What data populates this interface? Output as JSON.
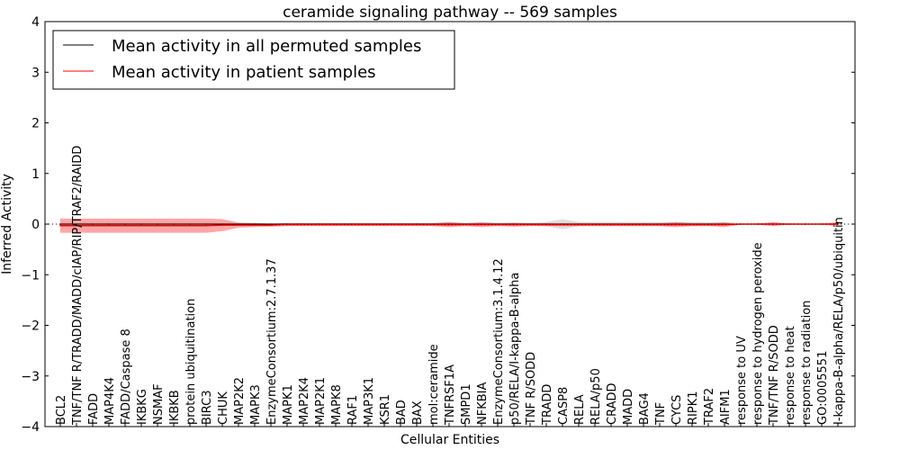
{
  "chart_data": {
    "type": "line",
    "title": "ceramide signaling pathway -- 569 samples",
    "xlabel": "Cellular Entities",
    "ylabel": "Inferred Activity",
    "ylim": [
      -4,
      4
    ],
    "yticks": [
      "4",
      "3",
      "2",
      "1",
      "0",
      "−1",
      "−2",
      "−3",
      "−4"
    ],
    "ytick_values": [
      4,
      3,
      2,
      1,
      0,
      -1,
      -2,
      -3,
      -4
    ],
    "legend_placement": "top-left",
    "categories": [
      "BCL2",
      "TNF/TNF R/TRADD/MADD/cIAP/RIP/TRAF2/RAIDD",
      "FADD",
      "MAP4K4",
      "FADD/Caspase 8",
      "IKBKG",
      "NSMAF",
      "IKBKB",
      "protein ubiquitination",
      "BIRC3",
      "CHUK",
      "MAP2K2",
      "MAPK3",
      "EnzymeConsortium:2.7.1.37",
      "MAPK1",
      "MAP2K4",
      "MAP2K1",
      "MAPK8",
      "RAF1",
      "MAP3K1",
      "KSR1",
      "BAD",
      "BAX",
      "mol:ceramide",
      "TNFRSF1A",
      "SMPD1",
      "NFKBIA",
      "EnzymeConsortium:3.1.4.12",
      "p50/RELA/I-kappa-B-alpha",
      "TNF R/SODD",
      "TRADD",
      "CASP8",
      "RELA",
      "RELA/p50",
      "CRADD",
      "MADD",
      "BAG4",
      "TNF",
      "CYCS",
      "RIPK1",
      "TRAF2",
      "AIFM1",
      "response to UV",
      "response to hydrogen peroxide",
      "TNF/TNF R/SODD",
      "response to heat",
      "response to radiation",
      "GO:0005551",
      "I-kappa-B-alpha/RELA/p50/ubiquitin"
    ],
    "series": [
      {
        "name": "Mean activity in all permuted samples",
        "color": "#000000",
        "values": [
          0,
          0,
          0,
          0,
          0,
          0,
          0,
          0,
          0,
          0,
          0,
          0,
          0,
          0,
          0,
          0,
          0,
          0,
          0,
          0,
          0,
          0,
          0,
          0,
          0,
          0,
          0,
          0,
          0,
          0,
          0,
          0,
          0,
          0,
          0,
          0,
          0,
          0,
          0,
          0,
          0,
          0,
          0,
          0,
          0,
          0,
          0,
          0,
          0
        ],
        "spread": [
          0.02,
          0.02,
          0.02,
          0.02,
          0.02,
          0.02,
          0.02,
          0.02,
          0.02,
          0.02,
          0.02,
          0.02,
          0.02,
          0.02,
          0.02,
          0.02,
          0.02,
          0.02,
          0.02,
          0.02,
          0.02,
          0.02,
          0.02,
          0.02,
          0.04,
          0.02,
          0.02,
          0.02,
          0.02,
          0.02,
          0.04,
          0.1,
          0.04,
          0.04,
          0.04,
          0.04,
          0.04,
          0.04,
          0.04,
          0.04,
          0.04,
          0.02,
          0.01,
          0.01,
          0.03,
          0.01,
          0.01,
          0.01,
          0.02
        ]
      },
      {
        "name": "Mean activity in patient samples",
        "color": "#ff0000",
        "values": [
          -0.03,
          -0.03,
          -0.03,
          -0.03,
          -0.03,
          -0.03,
          -0.03,
          -0.03,
          -0.03,
          -0.03,
          -0.02,
          -0.02,
          -0.02,
          -0.02,
          -0.01,
          -0.01,
          -0.01,
          -0.01,
          -0.01,
          -0.01,
          -0.01,
          -0.01,
          -0.01,
          -0.01,
          -0.01,
          -0.01,
          -0.01,
          -0.01,
          -0.01,
          -0.01,
          -0.01,
          -0.01,
          -0.01,
          -0.01,
          -0.01,
          -0.01,
          -0.01,
          -0.01,
          -0.01,
          -0.01,
          -0.01,
          -0.01,
          0,
          0,
          0,
          0,
          0,
          0,
          0
        ],
        "spread": [
          0.14,
          0.14,
          0.14,
          0.14,
          0.14,
          0.14,
          0.14,
          0.14,
          0.14,
          0.14,
          0.12,
          0.05,
          0.04,
          0.03,
          0.03,
          0.03,
          0.03,
          0.03,
          0.03,
          0.03,
          0.03,
          0.03,
          0.03,
          0.03,
          0.05,
          0.03,
          0.05,
          0.03,
          0.04,
          0.03,
          0.03,
          0.03,
          0.03,
          0.03,
          0.03,
          0.03,
          0.03,
          0.03,
          0.05,
          0.03,
          0.03,
          0.05,
          0.01,
          0.01,
          0.04,
          0.01,
          0.01,
          0.01,
          0.04
        ]
      }
    ]
  }
}
